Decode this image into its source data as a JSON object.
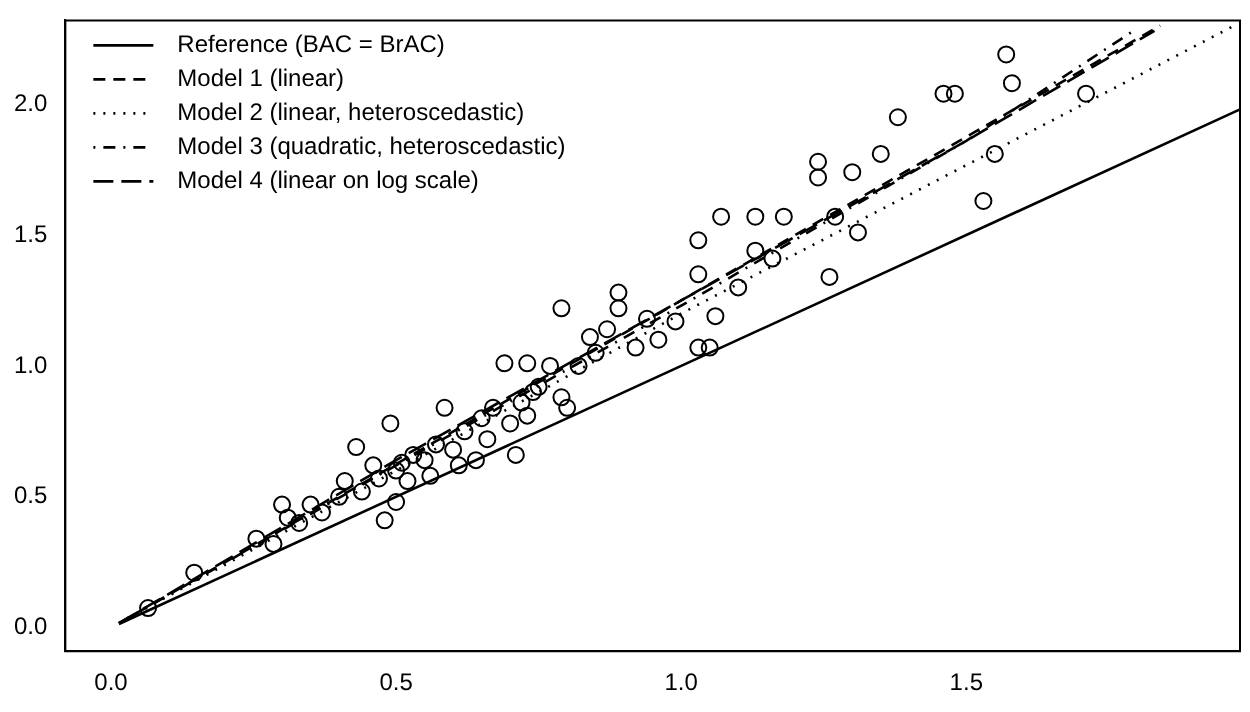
{
  "chart_data": {
    "type": "scatter",
    "xlim": [
      -0.08,
      1.98
    ],
    "ylim": [
      -0.09,
      2.32
    ],
    "xticks": [
      {
        "value": 0,
        "label": "0.0"
      },
      0.5,
      {
        "value": 1,
        "label": "1.0"
      },
      1.5
    ],
    "yticks": [
      {
        "value": 0,
        "label": "0.0"
      },
      0.5,
      {
        "value": 1,
        "label": "1.0"
      },
      1.5,
      {
        "value": 2,
        "label": "2.0"
      }
    ],
    "grid": false,
    "legend": "top left",
    "series": [
      {
        "marker": "circle",
        "color": "#000000",
        "x": [
          0.065,
          0.146,
          0.255,
          0.285,
          0.3,
          0.31,
          0.33,
          0.35,
          0.37,
          0.4,
          0.41,
          0.43,
          0.44,
          0.46,
          0.47,
          0.48,
          0.49,
          0.5,
          0.5,
          0.51,
          0.52,
          0.53,
          0.55,
          0.56,
          0.57,
          0.585,
          0.6,
          0.61,
          0.62,
          0.64,
          0.65,
          0.66,
          0.67,
          0.69,
          0.7,
          0.71,
          0.72,
          0.73,
          0.73,
          0.74,
          0.75,
          0.77,
          0.79,
          0.79,
          0.8,
          0.82,
          0.84,
          0.85,
          0.87,
          0.89,
          0.89,
          0.92,
          0.94,
          0.96,
          0.99,
          1.03,
          1.03,
          1.03,
          1.05,
          1.06,
          1.07,
          1.1,
          1.13,
          1.13,
          1.16,
          1.18,
          1.24,
          1.24,
          1.26,
          1.27,
          1.3,
          1.31,
          1.35,
          1.38,
          1.46,
          1.48,
          1.53,
          1.55,
          1.57,
          1.58,
          1.71
        ],
        "values": [
          0.075,
          0.21,
          0.34,
          0.32,
          0.47,
          0.42,
          0.4,
          0.47,
          0.44,
          0.5,
          0.56,
          0.69,
          0.52,
          0.62,
          0.57,
          0.41,
          0.78,
          0.48,
          0.6,
          0.63,
          0.56,
          0.66,
          0.64,
          0.58,
          0.7,
          0.84,
          0.68,
          0.62,
          0.75,
          0.64,
          0.8,
          0.72,
          0.84,
          1.01,
          0.78,
          0.66,
          0.86,
          1.01,
          0.81,
          0.9,
          0.92,
          1.0,
          1.22,
          0.88,
          0.84,
          1.0,
          1.11,
          1.05,
          1.14,
          1.28,
          1.22,
          1.07,
          1.18,
          1.1,
          1.17,
          1.48,
          1.35,
          1.07,
          1.07,
          1.19,
          1.57,
          1.3,
          1.57,
          1.44,
          1.41,
          1.57,
          1.78,
          1.72,
          1.34,
          1.57,
          1.74,
          1.51,
          1.81,
          1.95,
          2.04,
          2.04,
          1.63,
          1.81,
          2.19,
          2.08,
          2.04
        ]
      },
      {
        "name": "Reference (BAC = BrAC)",
        "type": "line",
        "line_style": "solid",
        "color": "#000000",
        "x": [
          0.014,
          1.98
        ],
        "values": [
          0.014,
          1.98
        ]
      },
      {
        "name": "Model 1 (linear)",
        "type": "line",
        "line_style": "dashed",
        "color": "#000000",
        "x": [
          0.014,
          1.0,
          1.84
        ],
        "values": [
          0.017,
          1.25,
          2.3
        ]
      },
      {
        "name": "Model 2 (linear, heteroscedastic)",
        "type": "line",
        "line_style": "dotted",
        "color": "#000000",
        "x": [
          0.014,
          1.0,
          1.97
        ],
        "values": [
          0.017,
          1.2,
          2.3
        ]
      },
      {
        "name": "Model 3 (quadratic, heteroscedastic)",
        "type": "line",
        "line_style": "dashdot",
        "color": "#000000",
        "x": [
          0.014,
          0.5,
          1.0,
          1.5,
          1.8
        ],
        "values": [
          0.017,
          0.62,
          1.23,
          1.86,
          2.29
        ]
      },
      {
        "name": "Model 4 (linear on log scale)",
        "type": "line",
        "line_style": "longdash",
        "color": "#000000",
        "x": [
          0.014,
          0.5,
          1.0,
          1.5,
          1.83
        ],
        "values": [
          0.017,
          0.64,
          1.25,
          1.86,
          2.28
        ]
      }
    ]
  }
}
